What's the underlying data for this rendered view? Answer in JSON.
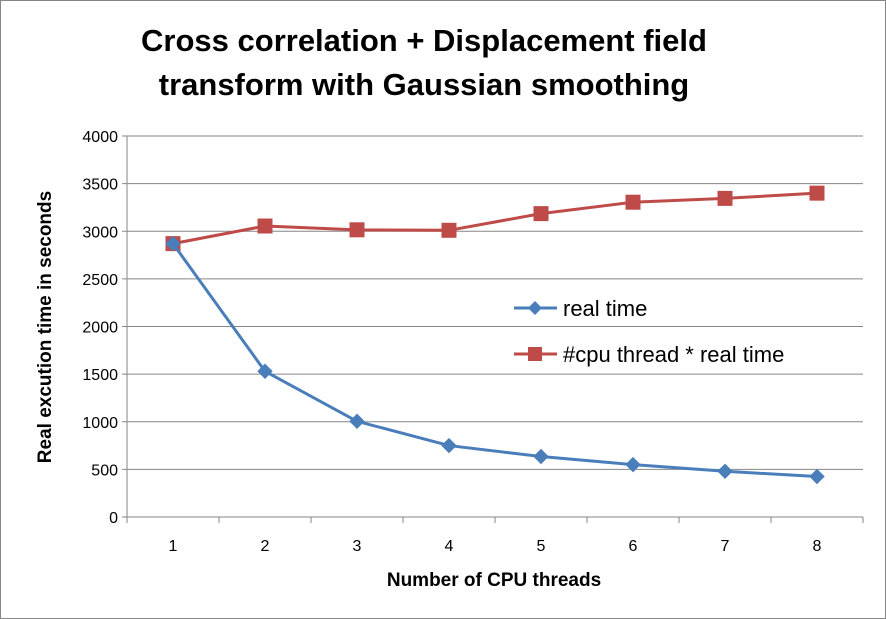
{
  "chart_data": {
    "type": "line",
    "title_lines": [
      "Cross correlation + Displacement field",
      "transform with Gaussian smoothing"
    ],
    "xlabel": "Number of CPU threads",
    "ylabel": "Real excution time in seconds",
    "categories": [
      "1",
      "2",
      "3",
      "4",
      "5",
      "6",
      "7",
      "8"
    ],
    "y_ticks": [
      "0",
      "500",
      "1000",
      "1500",
      "2000",
      "2500",
      "3000",
      "3500",
      "4000"
    ],
    "ylim": [
      0,
      4000
    ],
    "grid": "horizontal",
    "legend_position": "right",
    "series": [
      {
        "name": "real time",
        "color": "#4A7EBB",
        "marker": "diamond",
        "values": [
          2870,
          1530,
          1005,
          750,
          635,
          550,
          480,
          425
        ]
      },
      {
        "name": "#cpu thread * real time",
        "color": "#BE4B48",
        "marker": "square",
        "values": [
          2870,
          3055,
          3015,
          3010,
          3185,
          3305,
          3345,
          3400
        ]
      }
    ]
  }
}
